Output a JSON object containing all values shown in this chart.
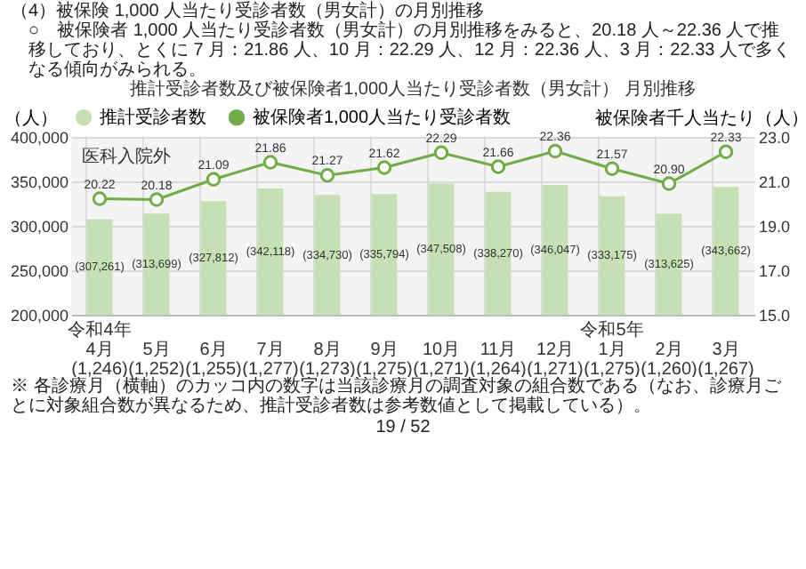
{
  "chart_data": {
    "type": "bar",
    "title": "推計受診者数及び被保険者1,000人当たり受診者数（男女計） 月別推移",
    "categories": [
      "令和4年\n4月\n(1,246)",
      "5月\n(1,252)",
      "6月\n(1,255)",
      "7月\n(1,277)",
      "8月\n(1,273)",
      "9月\n(1,275)",
      "10月\n(1,271)",
      "11月\n(1,264)",
      "12月\n(1,271)",
      "令和5年\n1月\n(1,275)",
      "2月\n(1,260)",
      "3月\n(1,267)"
    ],
    "series": [
      {
        "name": "推計受診者数",
        "color": "#c5e0b4",
        "values": [
          307261,
          313699,
          327812,
          342118,
          334730,
          335794,
          347508,
          338270,
          346047,
          333175,
          313625,
          343662
        ],
        "value_labels": [
          "(307,261)",
          "(313,699)",
          "(327,812)",
          "(342,118)",
          "(334,730)",
          "(335,794)",
          "(347,508)",
          "(338,270)",
          "(346,047)",
          "(333,175)",
          "(313,625)",
          "(343,662)"
        ]
      },
      {
        "name": "被保険者1,000人当たり受診者数",
        "type": "line",
        "axis": "y2",
        "color": "#70ad47",
        "values": [
          20.22,
          20.18,
          21.09,
          21.86,
          21.27,
          21.62,
          22.29,
          21.66,
          22.36,
          21.57,
          20.9,
          22.33
        ],
        "value_labels": [
          "20.22",
          "20.18",
          "21.09",
          "21.86",
          "21.27",
          "21.62",
          "22.29",
          "21.66",
          "22.36",
          "21.57",
          "20.90",
          "22.33"
        ]
      }
    ],
    "ylabel": "（人）",
    "y2label": "被保険者千人当たり（人）",
    "ylim": [
      200000,
      400000
    ],
    "yticks": [
      {
        "value": 200000,
        "label": "200,000"
      },
      {
        "value": 250000,
        "label": "250,000"
      },
      {
        "value": 300000,
        "label": "300,000"
      },
      {
        "value": 350000,
        "label": "350,000"
      },
      {
        "value": 400000,
        "label": "400,000"
      }
    ],
    "y2lim": [
      15,
      23
    ],
    "y2ticks": [
      {
        "value": 15,
        "label": "15.0"
      },
      {
        "value": 17,
        "label": "17.0"
      },
      {
        "value": 19,
        "label": "19.0"
      },
      {
        "value": 21,
        "label": "21.0"
      },
      {
        "value": 23,
        "label": "23.0"
      }
    ],
    "grid": true,
    "legend": "top",
    "marker": "circle",
    "line_style": "solid",
    "annotations": [
      "（4）被保険 1,000 人当たり受診者数（男女計）の月別推移",
      "○　被保険者 1,000 人当たり受診者数（男女計）の月別推移をみると、20.18 人～22.36 人で推移しており、とくに 7 月：21.86 人、10 月：22.29 人、12 月：22.36 人、3 月：22.33 人で多くなる傾向がみられる。",
      "医科入院外",
      "※ 各診療月（横軸）のカッコ内の数字は当該診療月の調査対象の組合数である（なお、診療月ごとに対象組合数が異なるため、推計受診者数は参考数値として掲載している）。",
      "19 / 52"
    ]
  }
}
